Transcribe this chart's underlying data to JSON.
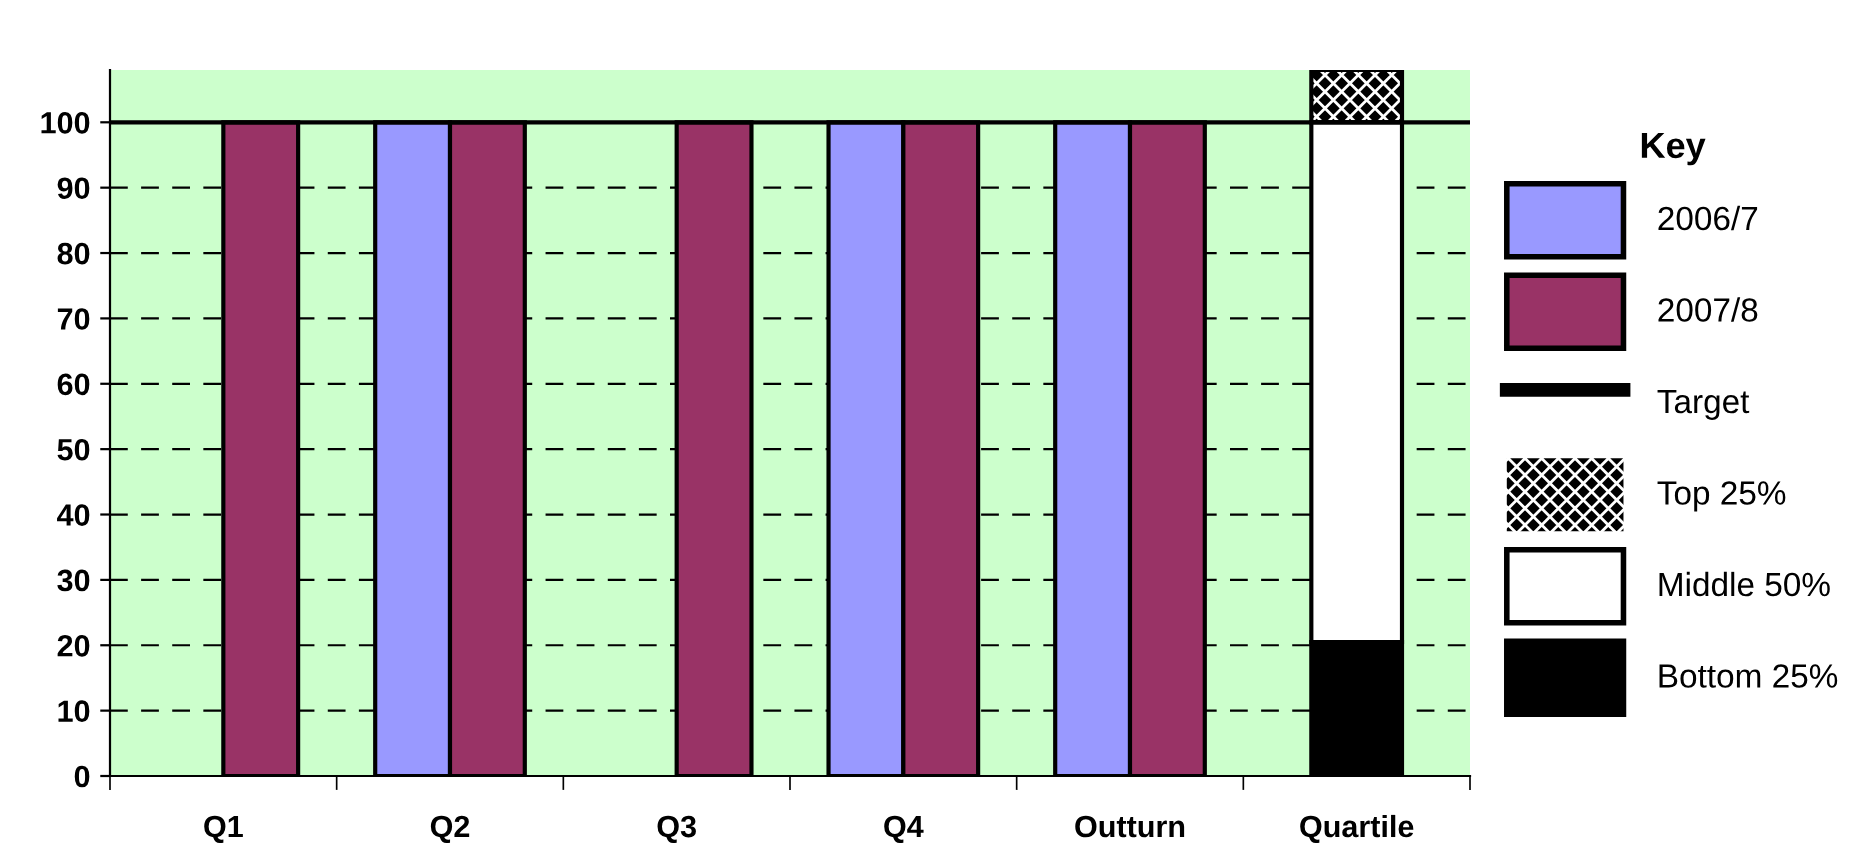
{
  "chart_data": {
    "type": "bar",
    "legend_title": "Key",
    "categories": [
      "Q1",
      "Q2",
      "Q3",
      "Q4",
      "Outturn",
      "Quartile"
    ],
    "series": [
      {
        "name": "2006/7",
        "color": "#9999ff",
        "values": [
          null,
          100,
          null,
          100,
          100,
          null
        ]
      },
      {
        "name": "2007/8",
        "color": "#993366",
        "values": [
          100,
          100,
          100,
          100,
          100,
          null
        ]
      },
      {
        "name": "Top 25%",
        "color": "#000000",
        "values": [
          null,
          null,
          null,
          null,
          null,
          8
        ],
        "base": [
          null,
          null,
          null,
          null,
          null,
          100
        ]
      },
      {
        "name": "Middle 50%",
        "color": "#ffffff",
        "values": [
          null,
          null,
          null,
          null,
          null,
          79.5
        ],
        "base": [
          null,
          null,
          null,
          null,
          null,
          20.5
        ]
      },
      {
        "name": "Bottom 25%",
        "color": "#000000",
        "values": [
          null,
          null,
          null,
          null,
          null,
          20.5
        ],
        "base": [
          null,
          null,
          null,
          null,
          null,
          0
        ]
      }
    ],
    "ref_lines": [
      {
        "axis": "y",
        "value": 100,
        "label": "Target",
        "color": "#000000"
      }
    ],
    "ylim": [
      0,
      108
    ],
    "yticks": [
      0,
      10,
      20,
      30,
      40,
      50,
      60,
      70,
      80,
      90,
      100
    ],
    "grid": "y",
    "legend": "right"
  }
}
